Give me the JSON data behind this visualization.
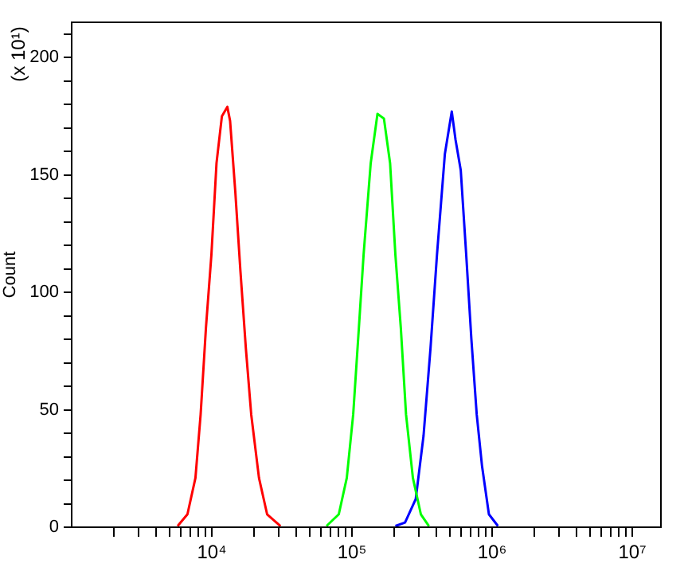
{
  "chart_data": {
    "type": "line",
    "ylabel": "Count",
    "annotations": [
      "(x 10¹)"
    ],
    "log": "x",
    "grid": false,
    "legend": false,
    "marker": "none",
    "line_style": "solid",
    "xlim": [
      1000,
      16000000
    ],
    "ylim": [
      0,
      215
    ],
    "xticks": [
      {
        "value": 2000,
        "label": null
      },
      {
        "value": 3000,
        "label": null
      },
      {
        "value": 4000,
        "label": null
      },
      {
        "value": 5000,
        "label": null
      },
      {
        "value": 6000,
        "label": null
      },
      {
        "value": 7000,
        "label": null
      },
      {
        "value": 8000,
        "label": null
      },
      {
        "value": 9000,
        "label": null
      },
      {
        "value": 10000,
        "label": "10⁴"
      },
      {
        "value": 20000,
        "label": null
      },
      {
        "value": 30000,
        "label": null
      },
      {
        "value": 40000,
        "label": null
      },
      {
        "value": 50000,
        "label": null
      },
      {
        "value": 60000,
        "label": null
      },
      {
        "value": 70000,
        "label": null
      },
      {
        "value": 80000,
        "label": null
      },
      {
        "value": 90000,
        "label": null
      },
      {
        "value": 100000,
        "label": "10⁵"
      },
      {
        "value": 200000,
        "label": null
      },
      {
        "value": 300000,
        "label": null
      },
      {
        "value": 400000,
        "label": null
      },
      {
        "value": 500000,
        "label": null
      },
      {
        "value": 600000,
        "label": null
      },
      {
        "value": 700000,
        "label": null
      },
      {
        "value": 800000,
        "label": null
      },
      {
        "value": 900000,
        "label": null
      },
      {
        "value": 1000000,
        "label": "10⁶"
      },
      {
        "value": 2000000,
        "label": null
      },
      {
        "value": 3000000,
        "label": null
      },
      {
        "value": 4000000,
        "label": null
      },
      {
        "value": 5000000,
        "label": null
      },
      {
        "value": 6000000,
        "label": null
      },
      {
        "value": 7000000,
        "label": null
      },
      {
        "value": 8000000,
        "label": null
      },
      {
        "value": 9000000,
        "label": null
      },
      {
        "value": 10000000,
        "label": "10⁷"
      }
    ],
    "yticks": [
      0,
      {
        "value": 10,
        "label": null
      },
      {
        "value": 20,
        "label": null
      },
      {
        "value": 30,
        "label": null
      },
      {
        "value": 40,
        "label": null
      },
      50,
      {
        "value": 60,
        "label": null
      },
      {
        "value": 70,
        "label": null
      },
      {
        "value": 80,
        "label": null
      },
      {
        "value": 90,
        "label": null
      },
      100,
      {
        "value": 110,
        "label": null
      },
      {
        "value": 120,
        "label": null
      },
      {
        "value": 130,
        "label": null
      },
      {
        "value": 140,
        "label": null
      },
      150,
      {
        "value": 160,
        "label": null
      },
      {
        "value": 170,
        "label": null
      },
      {
        "value": 180,
        "label": null
      },
      {
        "value": 190,
        "label": null
      },
      200,
      {
        "value": 210,
        "label": null
      }
    ],
    "series": [
      {
        "color": "#ff0000",
        "x": [
          5700,
          6700,
          7640,
          8320,
          9080,
          9930,
          10800,
          11800,
          12900,
          13500,
          14700,
          16000,
          17500,
          19100,
          21700,
          24800,
          30900
        ],
        "values": [
          0.5,
          5.5,
          21,
          48,
          85,
          116,
          155,
          175,
          179,
          173,
          143,
          109,
          76,
          48,
          21,
          5.5,
          0.5
        ]
      },
      {
        "color": "#00ff00",
        "x": [
          65800,
          80500,
          91800,
          102000,
          112000,
          121000,
          136000,
          152000,
          169000,
          187000,
          204000,
          223000,
          243000,
          272000,
          310000,
          354000
        ],
        "values": [
          0.5,
          5.5,
          21,
          48,
          85,
          116,
          155,
          176,
          174,
          155,
          116,
          85,
          48,
          21,
          5.5,
          0.5
        ]
      },
      {
        "color": "#0000ff",
        "x": [
          204000,
          239000,
          285000,
          324000,
          363000,
          404000,
          460000,
          515000,
          548000,
          597000,
          653000,
          711000,
          776000,
          847000,
          948000,
          1100000
        ],
        "values": [
          0.5,
          2,
          12,
          39,
          76,
          116,
          159,
          177,
          165,
          152,
          116,
          80,
          48,
          26,
          5.5,
          0.5
        ]
      }
    ]
  }
}
